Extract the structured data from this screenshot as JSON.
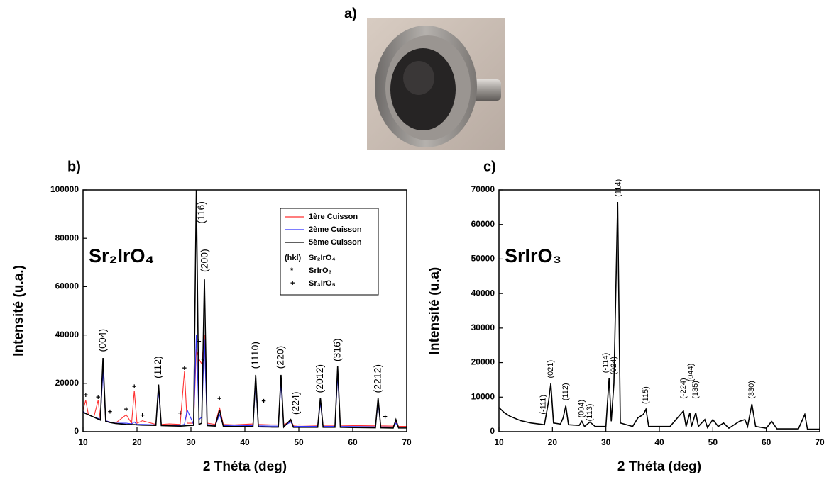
{
  "photo": {
    "label": "a)"
  },
  "chart_data": [
    {
      "type": "line",
      "panel_label": "b)",
      "inset_label": "Sr₂IrO₄",
      "x_label": "2 Théta (deg)",
      "y_label": "Intensité (u.a.)",
      "xlim": [
        10,
        70
      ],
      "xticks": [
        10,
        20,
        30,
        40,
        50,
        60,
        70
      ],
      "ylim": [
        0,
        100000
      ],
      "yticks": [
        0,
        20000,
        40000,
        60000,
        80000,
        100000
      ],
      "legend": true,
      "x": [
        10,
        10.5,
        11,
        12,
        12.8,
        13.2,
        13.7,
        14.2,
        15,
        16,
        18,
        19,
        19.5,
        20,
        21,
        23.5,
        24,
        24.5,
        26,
        28,
        28.8,
        29.3,
        30.5,
        31,
        31.5,
        32,
        32.5,
        33,
        34.5,
        35.3,
        36,
        38,
        41.5,
        42,
        42.5,
        45,
        46.2,
        46.7,
        47.2,
        48.5,
        49,
        50,
        53.5,
        54,
        54.5,
        56.7,
        57.2,
        57.7,
        60,
        64.2,
        64.7,
        65.2,
        67.5,
        68,
        68.5,
        70
      ],
      "series": [
        {
          "name": "1ère Cuisson",
          "color": "#ff3030",
          "values": [
            9000,
            13000,
            7000,
            6000,
            13000,
            5000,
            27000,
            4500,
            4000,
            3500,
            7000,
            3500,
            17000,
            3500,
            4500,
            3000,
            18000,
            3000,
            3200,
            3000,
            25000,
            3500,
            3500,
            34000,
            30000,
            28000,
            40000,
            3500,
            3000,
            10000,
            3000,
            2800,
            3200,
            22000,
            3000,
            2800,
            2800,
            22000,
            2800,
            4500,
            2600,
            2800,
            2600,
            13000,
            2600,
            2600,
            25000,
            2600,
            2500,
            2400,
            13000,
            2400,
            2300,
            4000,
            2200,
            2200
          ]
        },
        {
          "name": "2ème Cuisson",
          "color": "#3030ff",
          "values": [
            8500,
            7500,
            7000,
            6000,
            5500,
            5000,
            25000,
            4500,
            4000,
            3500,
            3500,
            3200,
            4000,
            3000,
            3000,
            2800,
            17000,
            2800,
            2600,
            2600,
            3000,
            9000,
            3000,
            40000,
            5000,
            6000,
            38000,
            3000,
            2600,
            7000,
            2500,
            2400,
            2500,
            20000,
            2400,
            2300,
            2300,
            20000,
            2300,
            4000,
            2200,
            2200,
            2200,
            12000,
            2200,
            2200,
            23000,
            2200,
            2100,
            2000,
            12000,
            2000,
            1900,
            3500,
            1900,
            1900
          ]
        },
        {
          "name": "5ème Cuisson",
          "color": "#000000",
          "values": [
            8000,
            7500,
            7000,
            6000,
            5200,
            4800,
            30500,
            4300,
            3800,
            3400,
            3000,
            2900,
            2900,
            2800,
            2700,
            2600,
            19500,
            2500,
            2400,
            2300,
            2400,
            2500,
            2600,
            100000,
            3000,
            3500,
            63000,
            2500,
            2300,
            9000,
            2200,
            2100,
            2100,
            23500,
            2000,
            1900,
            1900,
            23500,
            1900,
            5000,
            1800,
            1800,
            1800,
            14000,
            1800,
            1800,
            27000,
            1800,
            1700,
            1600,
            14000,
            1600,
            1500,
            5000,
            1500,
            1500
          ]
        }
      ],
      "legend_notes": [
        {
          "symbol": "(hkl)",
          "label": "Sr₂IrO₄"
        },
        {
          "symbol": "*",
          "label": "SrIrO₃"
        },
        {
          "symbol": "+",
          "label": "Sr₃IrO₅"
        }
      ],
      "annotations": [
        {
          "text": "(004)",
          "x": 13.7,
          "y": 33000,
          "rotated": true
        },
        {
          "text": "(112)",
          "x": 24,
          "y": 22000,
          "rotated": true
        },
        {
          "text": "(116)",
          "x": 32,
          "y": 86000,
          "rotated": true
        },
        {
          "text": "(200)",
          "x": 32.6,
          "y": 66000,
          "rotated": true
        },
        {
          "text": "(1110)",
          "x": 42,
          "y": 26000,
          "rotated": true
        },
        {
          "text": "(220)",
          "x": 46.7,
          "y": 26000,
          "rotated": true
        },
        {
          "text": "(224)",
          "x": 49.5,
          "y": 7000,
          "rotated": true
        },
        {
          "text": "(2012)",
          "x": 54,
          "y": 16000,
          "rotated": true
        },
        {
          "text": "(316)",
          "x": 57.2,
          "y": 29000,
          "rotated": true
        },
        {
          "text": "(2212)",
          "x": 64.7,
          "y": 16000,
          "rotated": true
        },
        {
          "text": "+",
          "x": 10.5,
          "y": 15000,
          "rotated": false
        },
        {
          "text": "+",
          "x": 12.8,
          "y": 14000,
          "rotated": false
        },
        {
          "text": "+",
          "x": 15,
          "y": 8000,
          "rotated": false
        },
        {
          "text": "+",
          "x": 18,
          "y": 9000,
          "rotated": false
        },
        {
          "text": "+",
          "x": 19.5,
          "y": 18500,
          "rotated": false
        },
        {
          "text": "+",
          "x": 21,
          "y": 6500,
          "rotated": false
        },
        {
          "text": "+",
          "x": 28,
          "y": 7500,
          "rotated": false
        },
        {
          "text": "+",
          "x": 28.8,
          "y": 26000,
          "rotated": false
        },
        {
          "text": "+",
          "x": 31.5,
          "y": 37000,
          "rotated": false
        },
        {
          "text": "*",
          "x": 32.2,
          "y": 29000,
          "rotated": false
        },
        {
          "text": "+",
          "x": 35.3,
          "y": 13500,
          "rotated": false
        },
        {
          "text": "+",
          "x": 43.5,
          "y": 12500,
          "rotated": false
        },
        {
          "text": "+",
          "x": 66,
          "y": 6000,
          "rotated": false
        }
      ]
    },
    {
      "type": "line",
      "panel_label": "c)",
      "inset_label": "SrIrO₃",
      "x_label": "2 Théta (deg)",
      "y_label": "Intensité (u.a)",
      "xlim": [
        10,
        70
      ],
      "xticks": [
        10,
        20,
        30,
        40,
        50,
        60,
        70
      ],
      "ylim": [
        0,
        70000
      ],
      "yticks": [
        0,
        10000,
        20000,
        30000,
        40000,
        50000,
        60000,
        70000
      ],
      "legend": false,
      "x": [
        10,
        11,
        12,
        14,
        16,
        18.5,
        19.3,
        19.7,
        20.2,
        21.5,
        22,
        22.5,
        23,
        25,
        25.5,
        26,
        27,
        28,
        30,
        30.6,
        31,
        31.5,
        32.2,
        32.7,
        35,
        36,
        37,
        37.5,
        38,
        40,
        42,
        44.5,
        45,
        45.7,
        46,
        46.8,
        47.3,
        48.5,
        49,
        50,
        51,
        52,
        53,
        55,
        56,
        56.5,
        57.3,
        58,
        60,
        61,
        62,
        66,
        67.2,
        67.7,
        70
      ],
      "series": [
        {
          "color": "#000000",
          "values": [
            7000,
            5500,
            4500,
            3200,
            2500,
            2000,
            9000,
            14000,
            2500,
            2200,
            4000,
            7500,
            2000,
            1800,
            3000,
            1500,
            2800,
            1500,
            1500,
            15500,
            3000,
            14000,
            66500,
            2500,
            1500,
            4000,
            5000,
            6500,
            1500,
            1500,
            1500,
            6000,
            1500,
            5500,
            1500,
            5500,
            1500,
            3500,
            1200,
            3500,
            1500,
            2500,
            1000,
            3000,
            3500,
            1500,
            8000,
            1500,
            1000,
            3000,
            800,
            800,
            5000,
            700,
            700
          ]
        }
      ],
      "annotations": [
        {
          "text": "(-111)",
          "x": 18.3,
          "y": 5000,
          "rotated": true
        },
        {
          "text": "(021)",
          "x": 19.7,
          "y": 15500,
          "rotated": true
        },
        {
          "text": "(112)",
          "x": 22.5,
          "y": 9000,
          "rotated": true
        },
        {
          "text": "(004)",
          "x": 25.5,
          "y": 4000,
          "rotated": true
        },
        {
          "text": "(113)",
          "x": 27,
          "y": 3000,
          "rotated": true
        },
        {
          "text": "(-114)",
          "x": 30,
          "y": 17000,
          "rotated": true
        },
        {
          "text": "(024)",
          "x": 31.5,
          "y": 16500,
          "rotated": true
        },
        {
          "text": "(114)",
          "x": 32.4,
          "y": 68000,
          "rotated": true
        },
        {
          "text": "(115)",
          "x": 37.5,
          "y": 8000,
          "rotated": true
        },
        {
          "text": "(-224)",
          "x": 44.5,
          "y": 9500,
          "rotated": true
        },
        {
          "text": "(044)",
          "x": 45.9,
          "y": 14500,
          "rotated": true
        },
        {
          "text": "(135)",
          "x": 46.8,
          "y": 9500,
          "rotated": true
        },
        {
          "text": "(330)",
          "x": 57.3,
          "y": 9500,
          "rotated": true
        }
      ]
    }
  ]
}
